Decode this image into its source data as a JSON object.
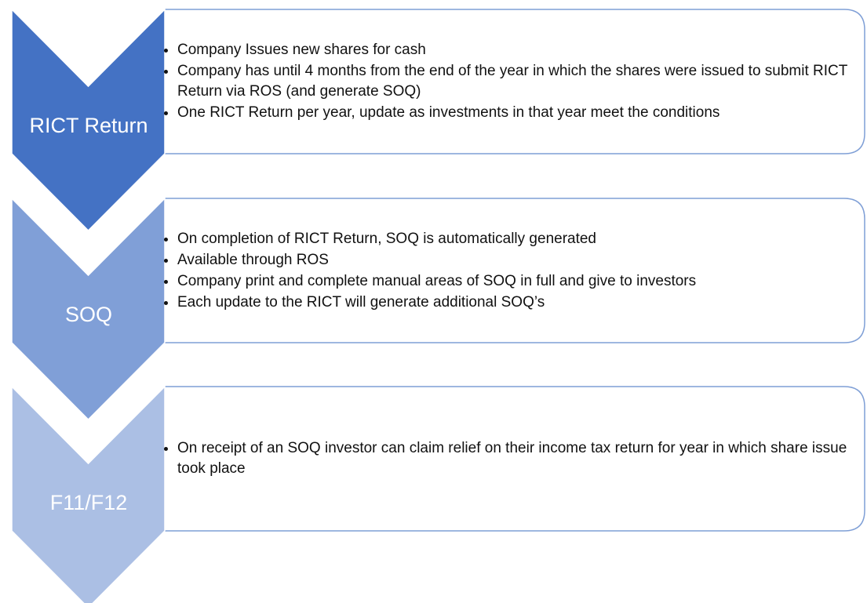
{
  "steps": [
    {
      "label": "RICT Return",
      "bullets": [
        "Company Issues new shares for cash",
        "Company has until 4 months from the end of the year in which the shares were issued  to submit RICT Return via ROS (and generate SOQ)",
        "One RICT Return per year, update as investments in that year meet the conditions"
      ]
    },
    {
      "label": "SOQ",
      "bullets": [
        "On completion of RICT Return, SOQ is automatically generated",
        "Available through ROS",
        "Company print and complete manual areas of SOQ in full and give to investors",
        "Each update to the RICT will generate additional SOQ’s"
      ]
    },
    {
      "label": "F11/F12",
      "bullets": [
        "On receipt of an SOQ investor can claim relief on their income tax return for year in which share issue took place"
      ]
    }
  ]
}
